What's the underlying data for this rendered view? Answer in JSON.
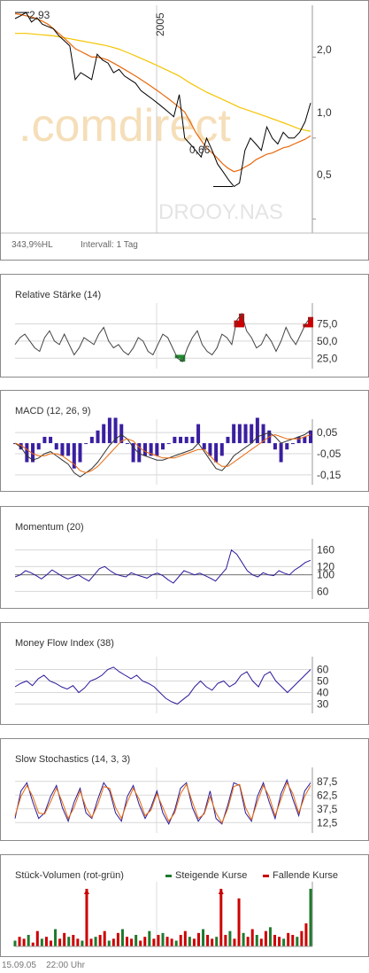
{
  "main": {
    "label_hi": "2,93",
    "label_lo": "0,66",
    "year_label": "2005",
    "y_ticks": [
      "2,0",
      "1,0",
      "0,5"
    ],
    "hl_text": "343,9%HL",
    "interval_text": "Intervall: 1 Tag",
    "watermark": ".comdirect",
    "watermark2": "DROOY.NAS",
    "colors": {
      "price": "#000000",
      "ma38": "#e8680c",
      "ma200": "#f5c400"
    }
  },
  "panels": {
    "rsi": {
      "title": "Relative Stärke (14)",
      "ticks": [
        "75,0",
        "50,0",
        "25,0"
      ]
    },
    "macd": {
      "title": "MACD (12, 26, 9)",
      "ticks": [
        "0,05",
        "-0,05",
        "-0,15"
      ]
    },
    "momentum": {
      "title": "Momentum (20)",
      "ticks": [
        "160",
        "120",
        "100",
        "60"
      ]
    },
    "mfi": {
      "title": "Money Flow Index (38)",
      "ticks": [
        "60",
        "50",
        "40",
        "30"
      ]
    },
    "stoch": {
      "title": "Slow Stochastics (14, 3, 3)",
      "ticks": [
        "87,5",
        "62,5",
        "37,5",
        "12,5"
      ]
    },
    "volume": {
      "title": "Stück-Volumen (rot-grün)",
      "legend_up": "Steigende Kurse",
      "legend_down": "Fallende Kurse",
      "colors": {
        "up": "#1f7a2e",
        "down": "#cc0000"
      }
    }
  },
  "footer": {
    "date": "15.09.05",
    "time": "22:00 Uhr"
  },
  "chart_data": [
    {
      "type": "line",
      "title": "",
      "y_scale": "log",
      "ylim": [
        0.45,
        3.0
      ],
      "annotations": {
        "high": 2.93,
        "low": 0.66
      },
      "series": [
        {
          "values": [
            2.78,
            2.85,
            2.93,
            2.7,
            2.8,
            2.65,
            2.6,
            2.55,
            2.4,
            2.3,
            2.2,
            1.65,
            1.75,
            1.7,
            1.65,
            2.05,
            1.95,
            1.9,
            1.75,
            1.8,
            1.7,
            1.65,
            1.6,
            1.5,
            1.45,
            1.4,
            1.35,
            1.3,
            1.25,
            1.2,
            1.45,
            1.0,
            0.95,
            0.9,
            0.85,
            1.0,
            0.9,
            0.8,
            0.75,
            0.7,
            0.66,
            0.68,
            0.9,
            1.0,
            0.95,
            0.9,
            1.1,
            1.0,
            0.95,
            1.05,
            1.0,
            1.0,
            1.05,
            1.15,
            1.35
          ]
        },
        {
          "values": [
            2.9,
            2.88,
            2.85,
            2.82,
            2.78,
            2.72,
            2.65,
            2.55,
            2.45,
            2.35,
            2.25,
            2.15,
            2.1,
            2.05,
            2.0,
            2.0,
            1.98,
            1.95,
            1.9,
            1.85,
            1.8,
            1.75,
            1.7,
            1.65,
            1.6,
            1.55,
            1.5,
            1.45,
            1.4,
            1.35,
            1.3,
            1.25,
            1.15,
            1.05,
            0.98,
            0.92,
            0.88,
            0.84,
            0.8,
            0.77,
            0.75,
            0.76,
            0.78,
            0.8,
            0.83,
            0.85,
            0.87,
            0.88,
            0.9,
            0.92,
            0.93,
            0.95,
            0.97,
            0.99,
            1.02
          ]
        },
        {
          "values": [
            2.45,
            2.45,
            2.45,
            2.44,
            2.43,
            2.42,
            2.41,
            2.4,
            2.38,
            2.36,
            2.34,
            2.32,
            2.3,
            2.28,
            2.26,
            2.24,
            2.22,
            2.2,
            2.17,
            2.14,
            2.1,
            2.06,
            2.02,
            1.98,
            1.94,
            1.9,
            1.86,
            1.82,
            1.78,
            1.74,
            1.7,
            1.65,
            1.6,
            1.56,
            1.52,
            1.48,
            1.45,
            1.42,
            1.39,
            1.36,
            1.33,
            1.3,
            1.28,
            1.26,
            1.24,
            1.22,
            1.2,
            1.18,
            1.16,
            1.14,
            1.12,
            1.1,
            1.08,
            1.07,
            1.06
          ]
        }
      ]
    },
    {
      "type": "line",
      "title": "Relative Stärke (14)",
      "ylim": [
        15,
        95
      ],
      "series": [
        {
          "values": [
            45,
            55,
            60,
            50,
            40,
            35,
            55,
            65,
            50,
            45,
            60,
            45,
            30,
            40,
            55,
            50,
            45,
            60,
            70,
            50,
            40,
            45,
            35,
            30,
            40,
            55,
            50,
            35,
            30,
            45,
            60,
            55,
            40,
            25,
            20,
            40,
            55,
            65,
            45,
            35,
            30,
            40,
            60,
            55,
            45,
            80,
            90,
            65,
            55,
            40,
            45,
            60,
            50,
            35,
            50,
            70,
            55,
            45,
            60,
            75,
            85
          ]
        }
      ]
    },
    {
      "type": "line",
      "title": "MACD (12, 26, 9)",
      "ylim": [
        -0.18,
        0.08
      ],
      "series": [
        {
          "values": [
            0.0,
            -0.02,
            -0.06,
            -0.08,
            -0.07,
            -0.05,
            -0.04,
            -0.06,
            -0.08,
            -0.1,
            -0.14,
            -0.16,
            -0.14,
            -0.12,
            -0.09,
            -0.05,
            -0.01,
            0.02,
            0.04,
            0.02,
            -0.02,
            -0.05,
            -0.06,
            -0.07,
            -0.08,
            -0.08,
            -0.07,
            -0.06,
            -0.05,
            -0.04,
            -0.03,
            0.0,
            -0.04,
            -0.08,
            -0.12,
            -0.13,
            -0.1,
            -0.06,
            -0.04,
            -0.02,
            0.0,
            0.03,
            0.04,
            0.05,
            0.03,
            0.0,
            0.01,
            0.02,
            0.03,
            0.04,
            0.06
          ]
        },
        {
          "values": [
            0.0,
            -0.01,
            -0.03,
            -0.05,
            -0.06,
            -0.06,
            -0.05,
            -0.05,
            -0.06,
            -0.08,
            -0.1,
            -0.13,
            -0.14,
            -0.13,
            -0.11,
            -0.08,
            -0.05,
            -0.02,
            0.01,
            0.02,
            0.01,
            -0.02,
            -0.04,
            -0.05,
            -0.06,
            -0.07,
            -0.07,
            -0.07,
            -0.06,
            -0.05,
            -0.04,
            -0.03,
            -0.03,
            -0.06,
            -0.09,
            -0.11,
            -0.11,
            -0.09,
            -0.07,
            -0.05,
            -0.03,
            -0.01,
            0.01,
            0.03,
            0.04,
            0.03,
            0.02,
            0.02,
            0.02,
            0.03,
            0.04
          ]
        }
      ]
    },
    {
      "type": "line",
      "title": "Momentum (20)",
      "ylim": [
        50,
        170
      ],
      "series": [
        {
          "values": [
            95,
            100,
            110,
            105,
            98,
            90,
            100,
            112,
            104,
            96,
            90,
            95,
            100,
            92,
            85,
            100,
            115,
            120,
            110,
            102,
            98,
            95,
            105,
            100,
            96,
            92,
            100,
            104,
            98,
            88,
            80,
            95,
            110,
            105,
            100,
            104,
            98,
            92,
            85,
            100,
            115,
            160,
            150,
            130,
            110,
            100,
            95,
            105,
            100,
            98,
            110,
            104,
            100,
            112,
            120,
            130,
            135
          ]
        }
      ]
    },
    {
      "type": "line",
      "title": "Money Flow Index (38)",
      "ylim": [
        25,
        65
      ],
      "series": [
        {
          "values": [
            45,
            48,
            50,
            46,
            52,
            55,
            50,
            48,
            45,
            43,
            46,
            40,
            44,
            50,
            52,
            55,
            60,
            62,
            58,
            55,
            52,
            55,
            50,
            48,
            45,
            40,
            35,
            32,
            30,
            34,
            38,
            45,
            50,
            45,
            42,
            48,
            50,
            45,
            48,
            55,
            58,
            50,
            45,
            55,
            58,
            50,
            45,
            40,
            45,
            50,
            55,
            60
          ]
        }
      ]
    },
    {
      "type": "line",
      "title": "Slow Stochastics (14, 3, 3)",
      "ylim": [
        0,
        100
      ],
      "series": [
        {
          "values": [
            20,
            70,
            85,
            50,
            20,
            30,
            60,
            80,
            40,
            15,
            50,
            75,
            30,
            20,
            55,
            85,
            70,
            30,
            15,
            60,
            80,
            45,
            20,
            40,
            70,
            30,
            10,
            35,
            75,
            85,
            40,
            15,
            30,
            70,
            20,
            10,
            45,
            85,
            80,
            30,
            15,
            60,
            85,
            50,
            20,
            65,
            90,
            55,
            25,
            70,
            85
          ]
        },
        {
          "values": [
            25,
            60,
            80,
            60,
            30,
            28,
            50,
            75,
            50,
            20,
            40,
            70,
            40,
            22,
            45,
            78,
            75,
            40,
            20,
            50,
            75,
            55,
            25,
            35,
            65,
            40,
            15,
            30,
            65,
            82,
            50,
            20,
            28,
            60,
            30,
            12,
            38,
            78,
            82,
            40,
            18,
            50,
            80,
            60,
            25,
            55,
            85,
            65,
            30,
            60,
            80
          ]
        }
      ]
    },
    {
      "type": "bar",
      "title": "Stück-Volumen (rot-grün)",
      "values": [
        3,
        5,
        4,
        6,
        2,
        8,
        4,
        5,
        3,
        9,
        4,
        7,
        5,
        6,
        4,
        3,
        30,
        4,
        5,
        6,
        8,
        3,
        4,
        7,
        9,
        5,
        4,
        6,
        3,
        5,
        8,
        4,
        6,
        7,
        5,
        4,
        3,
        6,
        8,
        5,
        4,
        7,
        9,
        6,
        4,
        5,
        30,
        6,
        8,
        4,
        25,
        7,
        5,
        9,
        6,
        4,
        8,
        10,
        6,
        5,
        4,
        7,
        6,
        5,
        8,
        12,
        30
      ]
    }
  ]
}
